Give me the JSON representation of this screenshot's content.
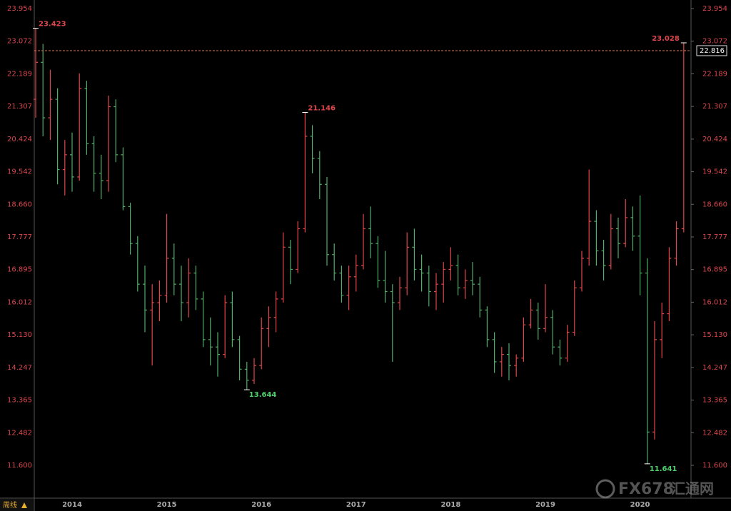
{
  "chart_data": {
    "type": "ohlc",
    "period_label": "周线",
    "watermark": "FX678",
    "watermark_cn": "汇通网",
    "up_color": "#e0474c",
    "down_color": "#4fae6a",
    "ylim": [
      10.712,
      24.186
    ],
    "yticks": [
      23.954,
      23.072,
      22.189,
      21.307,
      20.424,
      19.542,
      {
        "value": 18.66,
        "label": "18.660"
      },
      17.777,
      16.895,
      16.012,
      {
        "value": 15.13,
        "label": "15.130"
      },
      14.247,
      13.365,
      12.482,
      {
        "value": 11.6,
        "label": "11.600"
      }
    ],
    "last_price": 22.816,
    "marked_highs": [
      23.423,
      21.146,
      23.028
    ],
    "marked_lows": [
      13.644,
      11.641
    ],
    "categories": [
      null,
      null,
      null,
      null,
      null,
      "2014",
      null,
      null,
      null,
      null,
      null,
      null,
      null,
      null,
      null,
      null,
      null,
      null,
      "2015",
      null,
      null,
      null,
      null,
      null,
      null,
      null,
      null,
      null,
      null,
      null,
      null,
      "2016",
      null,
      null,
      null,
      null,
      null,
      null,
      null,
      null,
      null,
      null,
      null,
      null,
      "2017",
      null,
      null,
      null,
      null,
      null,
      null,
      null,
      null,
      null,
      null,
      null,
      null,
      "2018",
      null,
      null,
      null,
      null,
      null,
      null,
      null,
      null,
      null,
      null,
      null,
      null,
      "2019",
      null,
      null,
      null,
      null,
      null,
      null,
      null,
      null,
      null,
      null,
      null,
      null,
      "2020",
      null,
      null,
      null,
      null,
      null,
      null
    ],
    "ohlc": [
      [
        21.5,
        23.423,
        21.0,
        22.5
      ],
      [
        22.5,
        23.0,
        20.5,
        21.0
      ],
      [
        21.0,
        22.3,
        20.4,
        21.5
      ],
      [
        21.5,
        21.8,
        19.2,
        19.6
      ],
      [
        19.6,
        20.4,
        18.9,
        20.0
      ],
      [
        20.0,
        20.6,
        19.0,
        19.4
      ],
      [
        19.4,
        22.2,
        19.3,
        21.8
      ],
      [
        21.8,
        22.0,
        20.0,
        20.3
      ],
      [
        20.3,
        20.5,
        19.0,
        19.5
      ],
      [
        19.5,
        20.0,
        18.8,
        19.3
      ],
      [
        19.3,
        21.6,
        19.0,
        21.3
      ],
      [
        21.3,
        21.5,
        19.8,
        20.0
      ],
      [
        20.0,
        20.2,
        18.5,
        18.6
      ],
      [
        18.6,
        18.7,
        17.3,
        17.6
      ],
      [
        17.6,
        17.8,
        16.3,
        16.5
      ],
      [
        16.5,
        17.0,
        15.2,
        15.8
      ],
      [
        15.8,
        16.5,
        14.3,
        16.0
      ],
      [
        16.0,
        16.6,
        15.5,
        16.2
      ],
      [
        16.2,
        18.4,
        16.0,
        17.2
      ],
      [
        17.2,
        17.6,
        16.2,
        16.5
      ],
      [
        16.5,
        17.0,
        15.5,
        16.0
      ],
      [
        16.0,
        17.2,
        15.6,
        16.8
      ],
      [
        16.8,
        17.0,
        15.8,
        16.1
      ],
      [
        16.1,
        16.3,
        14.8,
        15.0
      ],
      [
        15.0,
        15.6,
        14.3,
        14.8
      ],
      [
        14.8,
        15.2,
        14.0,
        14.6
      ],
      [
        14.6,
        16.2,
        14.5,
        16.0
      ],
      [
        16.0,
        16.3,
        14.8,
        15.0
      ],
      [
        15.0,
        15.1,
        13.9,
        14.2
      ],
      [
        14.2,
        14.4,
        13.644,
        13.9
      ],
      [
        13.9,
        14.5,
        13.8,
        14.3
      ],
      [
        14.3,
        15.6,
        14.2,
        15.3
      ],
      [
        15.3,
        15.9,
        14.8,
        15.6
      ],
      [
        15.6,
        16.3,
        15.2,
        16.1
      ],
      [
        16.1,
        17.9,
        16.0,
        17.5
      ],
      [
        17.5,
        17.7,
        16.5,
        16.9
      ],
      [
        16.9,
        18.2,
        16.8,
        18.0
      ],
      [
        18.0,
        21.146,
        17.9,
        20.5
      ],
      [
        20.5,
        20.8,
        19.5,
        19.9
      ],
      [
        19.9,
        20.1,
        18.8,
        19.2
      ],
      [
        19.2,
        19.4,
        17.0,
        17.3
      ],
      [
        17.3,
        17.6,
        16.6,
        16.8
      ],
      [
        16.8,
        17.0,
        16.0,
        16.2
      ],
      [
        16.2,
        17.0,
        15.8,
        16.7
      ],
      [
        16.7,
        17.3,
        16.3,
        17.0
      ],
      [
        17.0,
        18.4,
        16.9,
        18.0
      ],
      [
        18.0,
        18.6,
        17.2,
        17.6
      ],
      [
        17.6,
        17.8,
        16.4,
        16.6
      ],
      [
        16.6,
        17.4,
        16.0,
        16.3
      ],
      [
        16.3,
        16.5,
        14.4,
        16.0
      ],
      [
        16.0,
        16.7,
        15.8,
        16.4
      ],
      [
        16.4,
        17.9,
        16.2,
        17.5
      ],
      [
        17.5,
        18.0,
        16.6,
        16.9
      ],
      [
        16.9,
        17.3,
        16.3,
        16.8
      ],
      [
        16.8,
        17.0,
        15.9,
        16.3
      ],
      [
        16.3,
        16.8,
        15.8,
        16.5
      ],
      [
        16.5,
        17.1,
        16.0,
        16.9
      ],
      [
        16.9,
        17.5,
        16.6,
        17.0
      ],
      [
        17.0,
        17.3,
        16.2,
        16.4
      ],
      [
        16.4,
        16.9,
        16.1,
        16.6
      ],
      [
        16.6,
        17.1,
        16.2,
        16.5
      ],
      [
        16.5,
        16.7,
        15.6,
        15.8
      ],
      [
        15.8,
        15.9,
        14.8,
        15.0
      ],
      [
        15.0,
        15.2,
        14.1,
        14.4
      ],
      [
        14.4,
        14.8,
        14.0,
        14.6
      ],
      [
        14.6,
        14.9,
        13.9,
        14.3
      ],
      [
        14.3,
        14.6,
        14.0,
        14.5
      ],
      [
        14.5,
        15.6,
        14.4,
        15.4
      ],
      [
        15.4,
        16.1,
        15.3,
        15.8
      ],
      [
        15.8,
        16.0,
        15.0,
        15.3
      ],
      [
        15.3,
        16.5,
        15.2,
        15.6
      ],
      [
        15.6,
        15.8,
        14.6,
        14.8
      ],
      [
        14.8,
        15.0,
        14.3,
        14.5
      ],
      [
        14.5,
        15.4,
        14.4,
        15.2
      ],
      [
        15.2,
        16.6,
        15.1,
        16.4
      ],
      [
        16.4,
        17.4,
        16.3,
        17.2
      ],
      [
        17.2,
        19.6,
        17.0,
        18.2
      ],
      [
        18.2,
        18.5,
        17.0,
        17.4
      ],
      [
        17.4,
        17.7,
        16.6,
        17.0
      ],
      [
        17.0,
        18.4,
        16.9,
        18.0
      ],
      [
        18.0,
        18.3,
        17.2,
        17.6
      ],
      [
        17.6,
        18.8,
        17.5,
        18.3
      ],
      [
        18.3,
        18.6,
        17.4,
        17.8
      ],
      [
        17.8,
        18.9,
        16.2,
        16.8
      ],
      [
        16.8,
        17.2,
        11.641,
        12.5
      ],
      [
        12.5,
        15.5,
        12.3,
        15.0
      ],
      [
        15.0,
        16.0,
        14.5,
        15.7
      ],
      [
        15.7,
        17.5,
        15.5,
        17.2
      ],
      [
        17.2,
        18.2,
        17.0,
        18.0
      ],
      [
        18.0,
        23.028,
        17.9,
        22.816
      ]
    ]
  }
}
